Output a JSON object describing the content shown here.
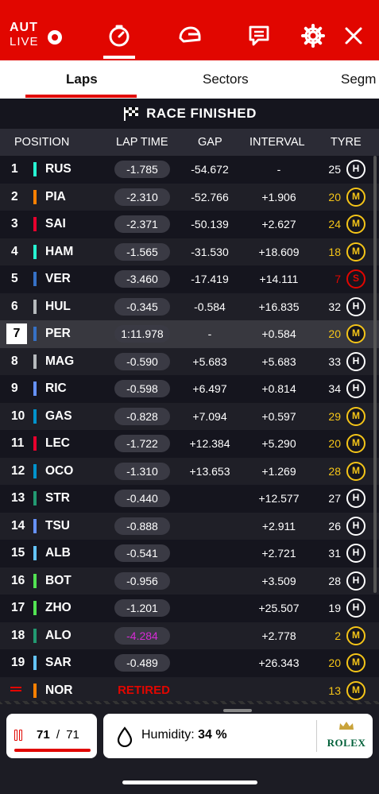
{
  "header": {
    "region": "AUT",
    "live_label": "LIVE",
    "icons": [
      "timer-icon",
      "helmet-icon",
      "chat-icon",
      "gear-icon",
      "close-icon"
    ]
  },
  "tabs": [
    {
      "label": "Laps",
      "active": true
    },
    {
      "label": "Sectors",
      "active": false
    },
    {
      "label": "Segm",
      "active": false
    }
  ],
  "banner": {
    "text": "RACE FINISHED"
  },
  "columns": {
    "position": "POSITION",
    "lap_time": "LAP TIME",
    "gap": "GAP",
    "interval": "INTERVAL",
    "tyre": "TYRE"
  },
  "rows": [
    {
      "pos": "1",
      "code": "RUS",
      "team_color": "#27f4d2",
      "lap": "-1.785",
      "gap": "-54.672",
      "interval": "-",
      "laps": "25",
      "laps_color": "white",
      "tyre": "H"
    },
    {
      "pos": "2",
      "code": "PIA",
      "team_color": "#ff8000",
      "lap": "-2.310",
      "gap": "-52.766",
      "interval": "+1.906",
      "laps": "20",
      "laps_color": "yellow",
      "tyre": "M"
    },
    {
      "pos": "3",
      "code": "SAI",
      "team_color": "#e8002d",
      "lap": "-2.371",
      "gap": "-50.139",
      "interval": "+2.627",
      "laps": "24",
      "laps_color": "yellow",
      "tyre": "M"
    },
    {
      "pos": "4",
      "code": "HAM",
      "team_color": "#27f4d2",
      "lap": "-1.565",
      "gap": "-31.530",
      "interval": "+18.609",
      "laps": "18",
      "laps_color": "yellow",
      "tyre": "M"
    },
    {
      "pos": "5",
      "code": "VER",
      "team_color": "#3671c6",
      "lap": "-3.460",
      "gap": "-17.419",
      "interval": "+14.111",
      "laps": "7",
      "laps_color": "red",
      "tyre": "S"
    },
    {
      "pos": "6",
      "code": "HUL",
      "team_color": "#b6babd",
      "lap": "-0.345",
      "gap": "-0.584",
      "interval": "+16.835",
      "laps": "32",
      "laps_color": "white",
      "tyre": "H"
    },
    {
      "pos": "7",
      "code": "PER",
      "team_color": "#3671c6",
      "lap": "1:11.978",
      "gap": "-",
      "interval": "+0.584",
      "laps": "20",
      "laps_color": "yellow",
      "tyre": "M",
      "highlight": true
    },
    {
      "pos": "8",
      "code": "MAG",
      "team_color": "#b6babd",
      "lap": "-0.590",
      "gap": "+5.683",
      "interval": "+5.683",
      "laps": "33",
      "laps_color": "white",
      "tyre": "H"
    },
    {
      "pos": "9",
      "code": "RIC",
      "team_color": "#6692ff",
      "lap": "-0.598",
      "gap": "+6.497",
      "interval": "+0.814",
      "laps": "34",
      "laps_color": "white",
      "tyre": "H"
    },
    {
      "pos": "10",
      "code": "GAS",
      "team_color": "#0093cc",
      "lap": "-0.828",
      "gap": "+7.094",
      "interval": "+0.597",
      "laps": "29",
      "laps_color": "yellow",
      "tyre": "M"
    },
    {
      "pos": "11",
      "code": "LEC",
      "team_color": "#e8002d",
      "lap": "-1.722",
      "gap": "+12.384",
      "interval": "+5.290",
      "laps": "20",
      "laps_color": "yellow",
      "tyre": "M"
    },
    {
      "pos": "12",
      "code": "OCO",
      "team_color": "#0093cc",
      "lap": "-1.310",
      "gap": "+13.653",
      "interval": "+1.269",
      "laps": "28",
      "laps_color": "yellow",
      "tyre": "M"
    },
    {
      "pos": "13",
      "code": "STR",
      "team_color": "#229971",
      "lap": "-0.440",
      "gap": "",
      "interval": "+12.577",
      "laps": "27",
      "laps_color": "white",
      "tyre": "H"
    },
    {
      "pos": "14",
      "code": "TSU",
      "team_color": "#6692ff",
      "lap": "-0.888",
      "gap": "",
      "interval": "+2.911",
      "laps": "26",
      "laps_color": "white",
      "tyre": "H"
    },
    {
      "pos": "15",
      "code": "ALB",
      "team_color": "#64c4ff",
      "lap": "-0.541",
      "gap": "",
      "interval": "+2.721",
      "laps": "31",
      "laps_color": "white",
      "tyre": "H"
    },
    {
      "pos": "16",
      "code": "BOT",
      "team_color": "#52e252",
      "lap": "-0.956",
      "gap": "",
      "interval": "+3.509",
      "laps": "28",
      "laps_color": "white",
      "tyre": "H"
    },
    {
      "pos": "17",
      "code": "ZHO",
      "team_color": "#52e252",
      "lap": "-1.201",
      "gap": "",
      "interval": "+25.507",
      "laps": "19",
      "laps_color": "white",
      "tyre": "H"
    },
    {
      "pos": "18",
      "code": "ALO",
      "team_color": "#229971",
      "lap": "-4.284",
      "lap_purple": true,
      "gap": "",
      "interval": "+2.778",
      "laps": "2",
      "laps_color": "yellow",
      "tyre": "M"
    },
    {
      "pos": "19",
      "code": "SAR",
      "team_color": "#64c4ff",
      "lap": "-0.489",
      "gap": "",
      "interval": "+26.343",
      "laps": "20",
      "laps_color": "yellow",
      "tyre": "M"
    },
    {
      "pos": "",
      "code": "NOR",
      "team_color": "#ff8000",
      "lap": "RETIRED",
      "retired": true,
      "gap": "",
      "interval": "",
      "laps": "13",
      "laps_color": "yellow",
      "tyre": "M"
    }
  ],
  "bottom": {
    "current_lap": "71",
    "separator": "/",
    "total_laps": "71",
    "progress_fraction": 1.0,
    "humidity_label": "Humidity:",
    "humidity_value": "34 %",
    "sponsor": "ROLEX"
  }
}
